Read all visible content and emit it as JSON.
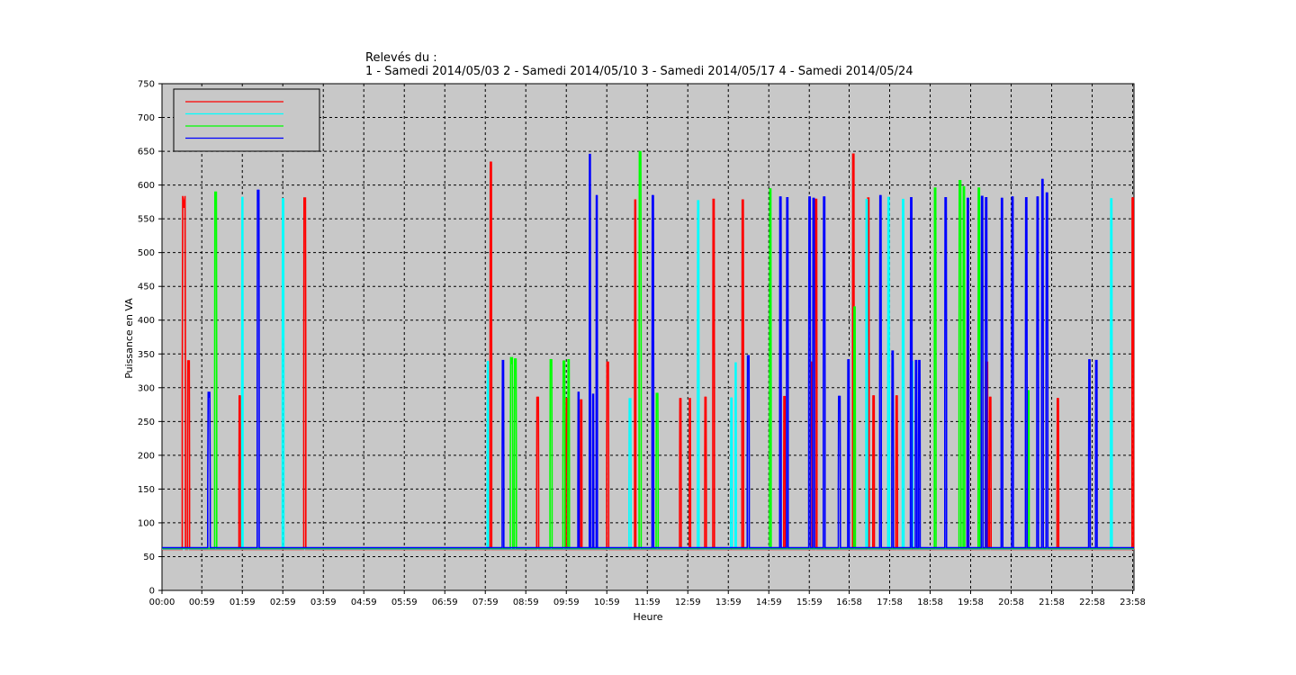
{
  "chart_data": {
    "type": "line",
    "title_lines": [
      "Relevés du :",
      "1 - Samedi  2014/05/03   2 - Samedi  2014/05/10   3 - Samedi  2014/05/17   4 - Samedi  2014/05/24"
    ],
    "xlabel": "Heure",
    "ylabel": "Puissance en VA",
    "x_unit": "hours",
    "xlim": [
      0,
      24
    ],
    "ylim": [
      0,
      750
    ],
    "y_ticks": [
      0,
      50,
      100,
      150,
      200,
      250,
      300,
      350,
      400,
      450,
      500,
      550,
      600,
      650,
      700,
      750
    ],
    "x_ticks": [
      {
        "h": 0.0,
        "label": "00:00"
      },
      {
        "h": 0.983,
        "label": "00:59"
      },
      {
        "h": 1.983,
        "label": "01:59"
      },
      {
        "h": 2.983,
        "label": "02:59"
      },
      {
        "h": 3.983,
        "label": "03:59"
      },
      {
        "h": 4.983,
        "label": "04:59"
      },
      {
        "h": 5.983,
        "label": "05:59"
      },
      {
        "h": 6.983,
        "label": "06:59"
      },
      {
        "h": 7.983,
        "label": "07:59"
      },
      {
        "h": 8.983,
        "label": "08:59"
      },
      {
        "h": 9.983,
        "label": "09:59"
      },
      {
        "h": 10.983,
        "label": "10:59"
      },
      {
        "h": 11.983,
        "label": "11:59"
      },
      {
        "h": 12.983,
        "label": "12:59"
      },
      {
        "h": 13.983,
        "label": "13:59"
      },
      {
        "h": 14.983,
        "label": "14:59"
      },
      {
        "h": 15.983,
        "label": "15:59"
      },
      {
        "h": 16.967,
        "label": "16:58"
      },
      {
        "h": 17.967,
        "label": "17:58"
      },
      {
        "h": 18.967,
        "label": "18:58"
      },
      {
        "h": 19.967,
        "label": "19:58"
      },
      {
        "h": 20.967,
        "label": "20:58"
      },
      {
        "h": 21.967,
        "label": "21:58"
      },
      {
        "h": 22.967,
        "label": "22:58"
      },
      {
        "h": 23.967,
        "label": "23:58"
      }
    ],
    "grid": true,
    "legend_position": "top-left",
    "baseline": 62,
    "series": [
      {
        "color": "#ff0000",
        "pulses": [
          [
            0.5,
            0.58,
            585
          ],
          [
            0.63,
            0.68,
            342
          ],
          [
            1.9,
            1.94,
            290
          ],
          [
            3.5,
            3.55,
            583
          ],
          [
            8.1,
            8.14,
            636
          ],
          [
            9.25,
            9.3,
            288
          ],
          [
            9.98,
            10.02,
            286
          ],
          [
            10.33,
            10.37,
            284
          ],
          [
            10.98,
            11.03,
            340
          ],
          [
            11.67,
            11.7,
            580
          ],
          [
            12.78,
            12.82,
            286
          ],
          [
            13.02,
            13.05,
            286
          ],
          [
            13.4,
            13.44,
            288
          ],
          [
            13.6,
            13.64,
            581
          ],
          [
            14.32,
            14.36,
            580
          ],
          [
            15.35,
            15.39,
            289
          ],
          [
            16.02,
            16.06,
            340
          ],
          [
            16.13,
            16.17,
            581
          ],
          [
            17.05,
            17.09,
            648
          ],
          [
            17.42,
            17.46,
            583
          ],
          [
            17.55,
            17.59,
            290
          ],
          [
            18.12,
            18.16,
            290
          ],
          [
            19.88,
            19.92,
            582
          ],
          [
            20.35,
            20.39,
            340
          ],
          [
            20.43,
            20.47,
            288
          ],
          [
            22.1,
            22.14,
            286
          ],
          [
            23.95,
            23.99,
            583
          ]
        ]
      },
      {
        "color": "#00ffff",
        "pulses": [
          [
            1.97,
            2.0,
            583
          ],
          [
            2.97,
            3.01,
            581
          ],
          [
            8.03,
            8.06,
            340
          ],
          [
            11.53,
            11.58,
            285
          ],
          [
            13.22,
            13.26,
            578
          ],
          [
            14.04,
            14.08,
            286
          ],
          [
            14.15,
            14.18,
            338
          ],
          [
            17.38,
            17.42,
            580
          ],
          [
            17.92,
            17.96,
            583
          ],
          [
            18.28,
            18.32,
            580
          ],
          [
            18.5,
            18.54,
            340
          ],
          [
            23.42,
            23.46,
            581
          ]
        ]
      },
      {
        "color": "#00ff00",
        "pulses": [
          [
            1.3,
            1.35,
            590
          ],
          [
            8.6,
            8.66,
            345
          ],
          [
            8.7,
            8.75,
            343
          ],
          [
            9.58,
            9.63,
            342
          ],
          [
            9.9,
            9.95,
            340
          ],
          [
            10.02,
            10.06,
            342
          ],
          [
            11.78,
            11.83,
            650
          ],
          [
            12.2,
            12.25,
            292
          ],
          [
            15.0,
            15.04,
            595
          ],
          [
            17.08,
            17.12,
            420
          ],
          [
            19.07,
            19.11,
            596
          ],
          [
            19.68,
            19.73,
            607
          ],
          [
            19.78,
            19.82,
            598
          ],
          [
            20.15,
            20.19,
            596
          ],
          [
            21.37,
            21.41,
            296
          ]
        ]
      },
      {
        "color": "#0000ff",
        "pulses": [
          [
            1.13,
            1.19,
            293
          ],
          [
            2.35,
            2.4,
            592
          ],
          [
            8.4,
            8.44,
            340
          ],
          [
            10.27,
            10.3,
            293
          ],
          [
            10.55,
            10.58,
            645
          ],
          [
            10.63,
            10.66,
            290
          ],
          [
            10.72,
            10.75,
            584
          ],
          [
            12.1,
            12.14,
            584
          ],
          [
            14.45,
            14.5,
            347
          ],
          [
            15.25,
            15.29,
            582
          ],
          [
            15.42,
            15.46,
            581
          ],
          [
            15.97,
            16.01,
            582
          ],
          [
            16.07,
            16.11,
            580
          ],
          [
            16.33,
            16.37,
            582
          ],
          [
            16.7,
            16.75,
            287
          ],
          [
            16.93,
            16.97,
            341
          ],
          [
            17.72,
            17.76,
            584
          ],
          [
            18.02,
            18.06,
            354
          ],
          [
            18.48,
            18.52,
            581
          ],
          [
            18.6,
            18.64,
            340
          ],
          [
            18.68,
            18.72,
            340
          ],
          [
            19.33,
            19.37,
            581
          ],
          [
            19.88,
            19.92,
            580
          ],
          [
            20.23,
            20.27,
            583
          ],
          [
            20.33,
            20.37,
            581
          ],
          [
            20.72,
            20.76,
            580
          ],
          [
            20.98,
            21.02,
            582
          ],
          [
            21.32,
            21.36,
            581
          ],
          [
            21.6,
            21.64,
            582
          ],
          [
            21.72,
            21.76,
            608
          ],
          [
            21.83,
            21.87,
            588
          ],
          [
            22.88,
            22.92,
            341
          ],
          [
            23.05,
            23.09,
            340
          ]
        ]
      }
    ]
  }
}
